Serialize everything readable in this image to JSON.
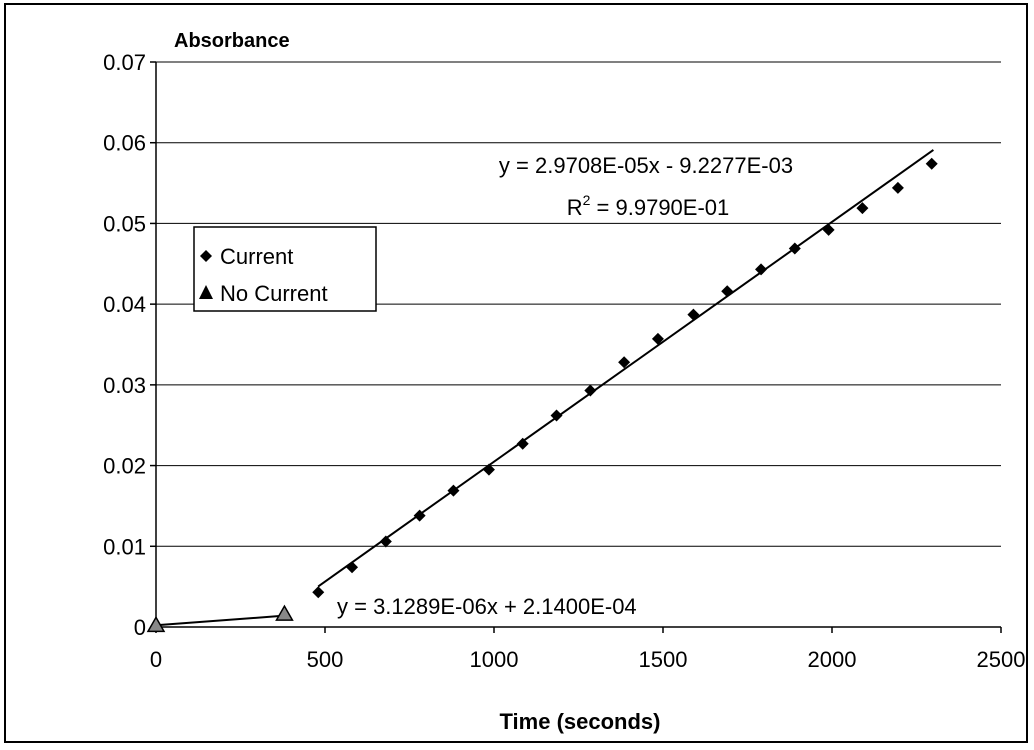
{
  "chart_data": {
    "type": "scatter",
    "title": "",
    "ylabel": "Absorbance",
    "xlabel": "Time (seconds)",
    "xlim": [
      0,
      2500
    ],
    "ylim": [
      0,
      0.07
    ],
    "x_ticks": [
      0,
      500,
      1000,
      1500,
      2000,
      2500
    ],
    "y_ticks": [
      0,
      0.01,
      0.02,
      0.03,
      0.04,
      0.05,
      0.06,
      0.07
    ],
    "x_tick_labels": [
      "0",
      "500",
      "1000",
      "1500",
      "2000",
      "2500"
    ],
    "y_tick_labels": [
      "0",
      "0.01",
      "0.02",
      "0.03",
      "0.04",
      "0.05",
      "0.06",
      "0.07"
    ],
    "grid": "horizontal",
    "legend_position": "left",
    "series": [
      {
        "name": "Current",
        "marker": "diamond",
        "color": "#000000",
        "points": [
          [
            480,
            0.0043
          ],
          [
            580,
            0.0074
          ],
          [
            680,
            0.0106
          ],
          [
            780,
            0.0138
          ],
          [
            880,
            0.0169
          ],
          [
            985,
            0.0195
          ],
          [
            1085,
            0.0227
          ],
          [
            1185,
            0.0262
          ],
          [
            1285,
            0.0293
          ],
          [
            1385,
            0.0328
          ],
          [
            1485,
            0.0357
          ],
          [
            1590,
            0.0387
          ],
          [
            1690,
            0.0416
          ],
          [
            1790,
            0.0443
          ],
          [
            1890,
            0.0469
          ],
          [
            1990,
            0.0492
          ],
          [
            2090,
            0.0519
          ],
          [
            2195,
            0.0544
          ],
          [
            2295,
            0.0574
          ]
        ]
      },
      {
        "name": "No Current",
        "marker": "triangle",
        "color": "#000000",
        "points": [
          [
            0,
            0.0002
          ],
          [
            380,
            0.0016
          ]
        ]
      }
    ],
    "trendlines": [
      {
        "series": "Current",
        "slope": 2.9708e-05,
        "intercept": -0.0092277,
        "x_range": [
          480,
          2300
        ],
        "equation": "y = 2.9708E-05x - 9.2277E-03",
        "r2_prefix": "R",
        "r2_sup": "2",
        "r2_value": " = 9.9790E-01"
      },
      {
        "series": "No Current",
        "slope": 3.1289e-06,
        "intercept": 0.000214,
        "x_range": [
          0,
          380
        ],
        "equation": "y = 3.1289E-06x + 2.1400E-04"
      }
    ]
  }
}
